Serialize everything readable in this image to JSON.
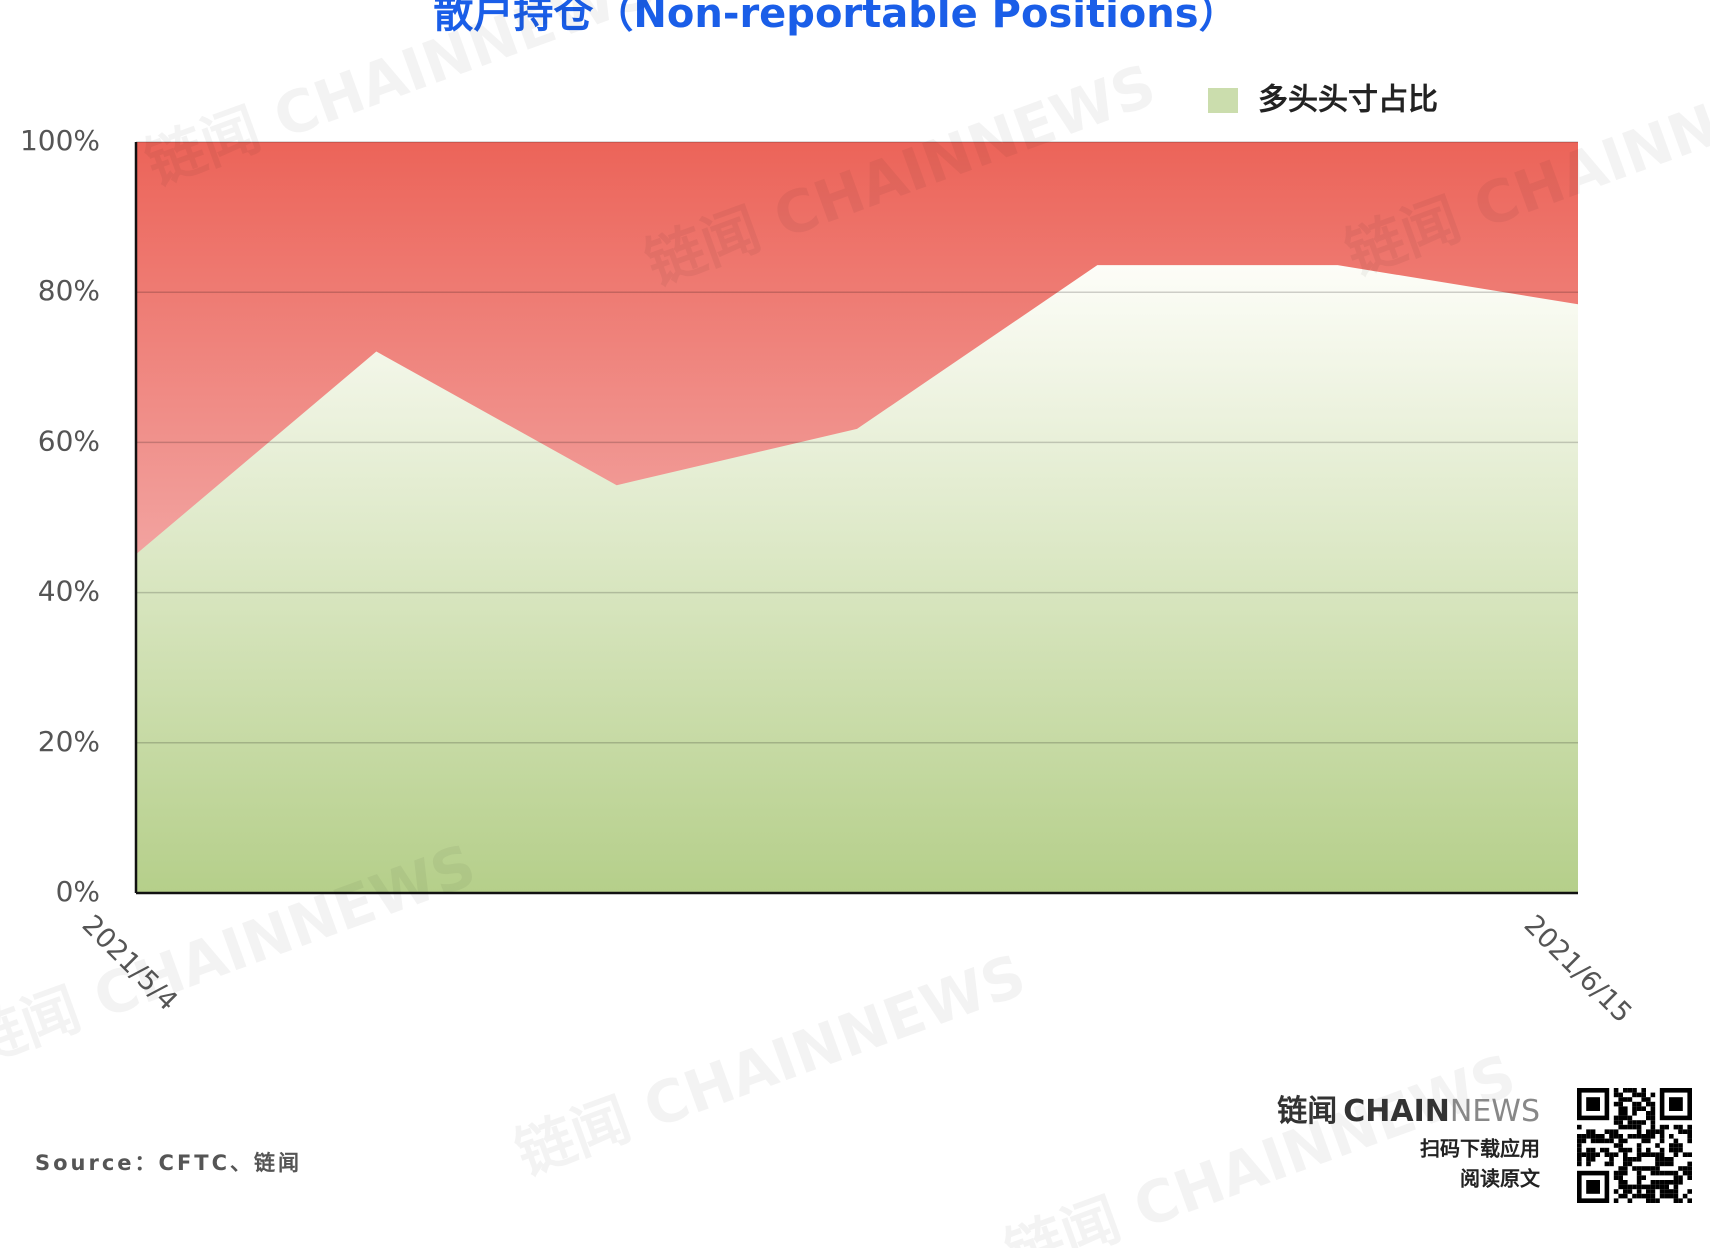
{
  "chart_data": {
    "type": "area",
    "title": "散户持仓（Non-reportable Positions）",
    "categories": [
      "2021/5/4",
      null,
      null,
      null,
      null,
      null,
      "2021/6/15"
    ],
    "series": [
      {
        "name": "多头头寸占比",
        "color": "#b5cf8a",
        "values": [
          45.1,
          72.1,
          54.3,
          61.8,
          83.6,
          83.6,
          78.4
        ]
      }
    ],
    "short_color": "#ec6459",
    "ylim": [
      0,
      100
    ],
    "yticks": [
      {
        "value": 0,
        "label": "0%"
      },
      {
        "value": 20,
        "label": "20%"
      },
      {
        "value": 40,
        "label": "40%"
      },
      {
        "value": 60,
        "label": "60%"
      },
      {
        "value": 80,
        "label": "80%"
      },
      {
        "value": 100,
        "label": "100%"
      }
    ],
    "grid": true,
    "legend": "top-right"
  },
  "footer": {
    "source": "Source：CFTC、链闻",
    "brand_cn": "链闻",
    "brand_en_bold": "CHAIN",
    "brand_en_light": "NEWS",
    "download": "扫码下载应用",
    "read": "阅读原文"
  },
  "watermark": "链闻 CHAINNEWS"
}
